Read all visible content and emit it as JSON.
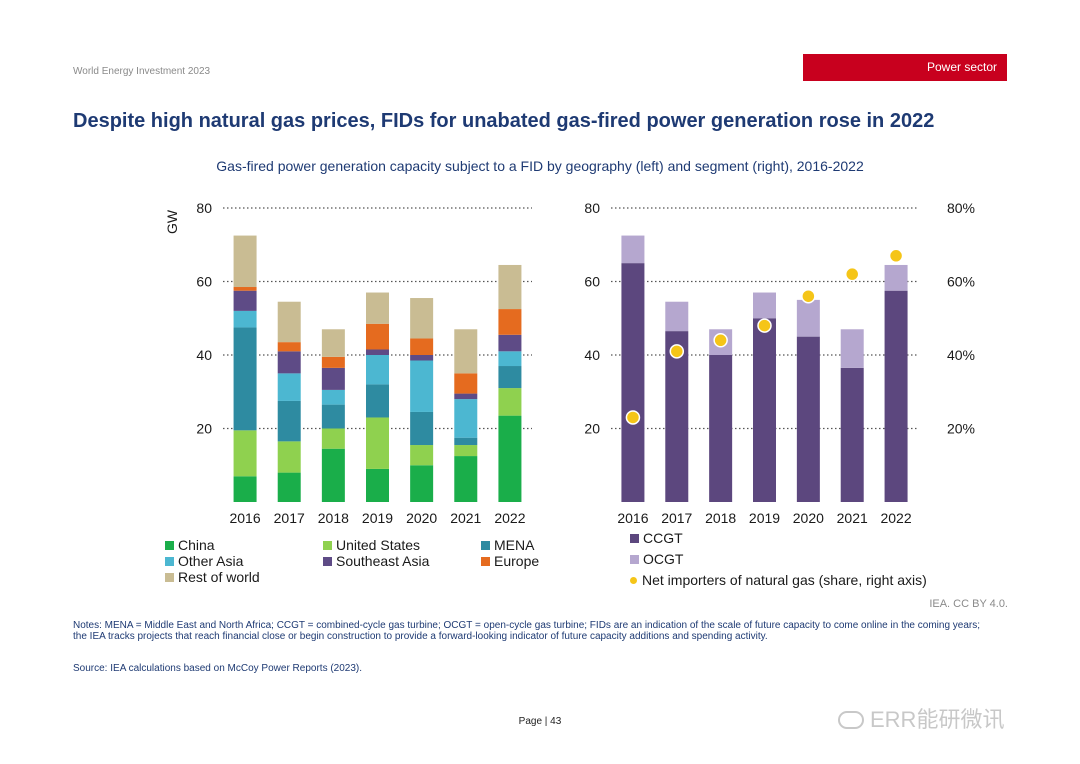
{
  "header": {
    "report": "World Energy Investment 2023",
    "section": "Power sector"
  },
  "title": "Despite high natural gas prices, FIDs for unabated gas-fired power generation rose in 2022",
  "subtitle": "Gas-fired power generation capacity subject to a FID by geography (left) and segment (right), 2016-2022",
  "chart_data": [
    {
      "type": "bar",
      "stacked": true,
      "categories": [
        "2016",
        "2017",
        "2018",
        "2019",
        "2020",
        "2021",
        "2022"
      ],
      "ylabel": "GW",
      "ylim": [
        0,
        80
      ],
      "yticks": [
        20,
        40,
        60,
        80
      ],
      "grid": "dotted horizontal",
      "legend_position": "bottom",
      "series": [
        {
          "name": "China",
          "color": "#1aae4a",
          "values": [
            7,
            8,
            14.5,
            9,
            10,
            12.5,
            23.5
          ]
        },
        {
          "name": "United States",
          "color": "#8fd14f",
          "values": [
            12.5,
            8.5,
            5.5,
            14,
            5.5,
            3,
            7.5
          ]
        },
        {
          "name": "MENA",
          "color": "#2e8ba1",
          "values": [
            28,
            11,
            6.5,
            9,
            9,
            2,
            6
          ]
        },
        {
          "name": "Other Asia",
          "color": "#4cb7d1",
          "values": [
            4.5,
            7.5,
            4,
            8,
            14,
            10.5,
            4
          ]
        },
        {
          "name": "Southeast Asia",
          "color": "#5e4b86",
          "values": [
            5.5,
            6,
            6,
            1.5,
            1.5,
            1.5,
            4.5
          ]
        },
        {
          "name": "Europe",
          "color": "#e56b1f",
          "values": [
            1,
            2.5,
            3,
            7,
            4.5,
            5.5,
            7
          ]
        },
        {
          "name": "Rest of world",
          "color": "#c9bc93",
          "values": [
            14,
            11,
            7.5,
            8.5,
            11,
            12,
            12
          ]
        }
      ]
    },
    {
      "type": "bar",
      "stacked": true,
      "categories": [
        "2016",
        "2017",
        "2018",
        "2019",
        "2020",
        "2021",
        "2022"
      ],
      "ylim": [
        0,
        80
      ],
      "yticks": [
        20,
        40,
        60,
        80
      ],
      "y2lim": [
        0,
        0.8
      ],
      "y2ticks": [
        "20%",
        "40%",
        "60%",
        "80%"
      ],
      "grid": "dotted horizontal",
      "legend_position": "bottom",
      "series": [
        {
          "name": "CCGT",
          "color": "#5c477e",
          "values": [
            65,
            46.5,
            40,
            50,
            45,
            36.5,
            57.5
          ]
        },
        {
          "name": "OCGT",
          "color": "#b5a7cf",
          "values": [
            7.5,
            8,
            7,
            7,
            10,
            10.5,
            7
          ]
        },
        {
          "name": "Net importers of natural gas (share, right axis)",
          "type": "scatter",
          "axis": "right",
          "color": "#f5c518",
          "values": [
            0.23,
            0.41,
            0.44,
            0.48,
            0.56,
            0.62,
            0.67
          ]
        }
      ]
    }
  ],
  "credit": "IEA. CC BY 4.0.",
  "notes": "Notes: MENA = Middle East and North Africa; CCGT = combined-cycle gas turbine; OCGT = open-cycle gas turbine; FIDs are an indication of the scale of future capacity to come online in the coming years; the IEA tracks projects that reach financial close or begin construction to provide a forward-looking indicator of future capacity additions and spending activity.",
  "source": "Source: IEA calculations based on McCoy Power Reports (2023).",
  "page": "Page | 43",
  "watermark": "ERR能研微讯"
}
